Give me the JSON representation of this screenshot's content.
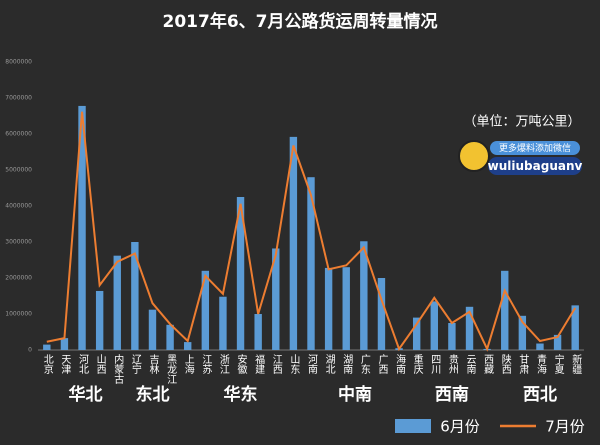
{
  "chart_data": {
    "type": "bar_line",
    "title": "2017年6、7月公路货运周转量情况",
    "unit_note": "（单位：万吨公里）",
    "badge": {
      "line1": "更多爆料添加微信",
      "line2": "wuliubaguanv"
    },
    "categories": [
      "北京",
      "天津",
      "河北",
      "山西",
      "内蒙古",
      "辽宁",
      "吉林",
      "黑龙江",
      "上海",
      "江苏",
      "浙江",
      "安徽",
      "福建",
      "江西",
      "山东",
      "河南",
      "湖北",
      "湖南",
      "广东",
      "广西",
      "海南",
      "重庆",
      "四川",
      "贵州",
      "云南",
      "西藏",
      "陕西",
      "甘肃",
      "青海",
      "宁夏",
      "新疆"
    ],
    "groups": [
      "华北",
      "东北",
      "华东",
      "中南",
      "西南",
      "西北"
    ],
    "series": [
      {
        "name": "6月份",
        "type": "bar",
        "color": "#5b9bd5",
        "values": [
          150000,
          330000,
          6780000,
          1640000,
          2620000,
          3000000,
          1120000,
          700000,
          220000,
          2200000,
          1480000,
          4250000,
          1000000,
          2820000,
          5920000,
          4800000,
          2280000,
          2300000,
          3020000,
          2000000,
          50000,
          900000,
          1350000,
          750000,
          1200000,
          30000,
          2200000,
          950000,
          180000,
          420000,
          1240000
        ]
      },
      {
        "name": "7月份",
        "type": "line",
        "color": "#ed7d31",
        "values": [
          230000,
          330000,
          6620000,
          1800000,
          2450000,
          2680000,
          1300000,
          720000,
          250000,
          2060000,
          1560000,
          4060000,
          1000000,
          2640000,
          5680000,
          4300000,
          2240000,
          2350000,
          2850000,
          1400000,
          30000,
          720000,
          1450000,
          750000,
          1060000,
          30000,
          1650000,
          780000,
          250000,
          360000,
          1170000
        ]
      }
    ],
    "ylim": [
      0,
      8000000
    ],
    "yticks": [
      0,
      1000000,
      2000000,
      3000000,
      4000000,
      5000000,
      6000000,
      7000000,
      8000000
    ],
    "grid": false
  }
}
